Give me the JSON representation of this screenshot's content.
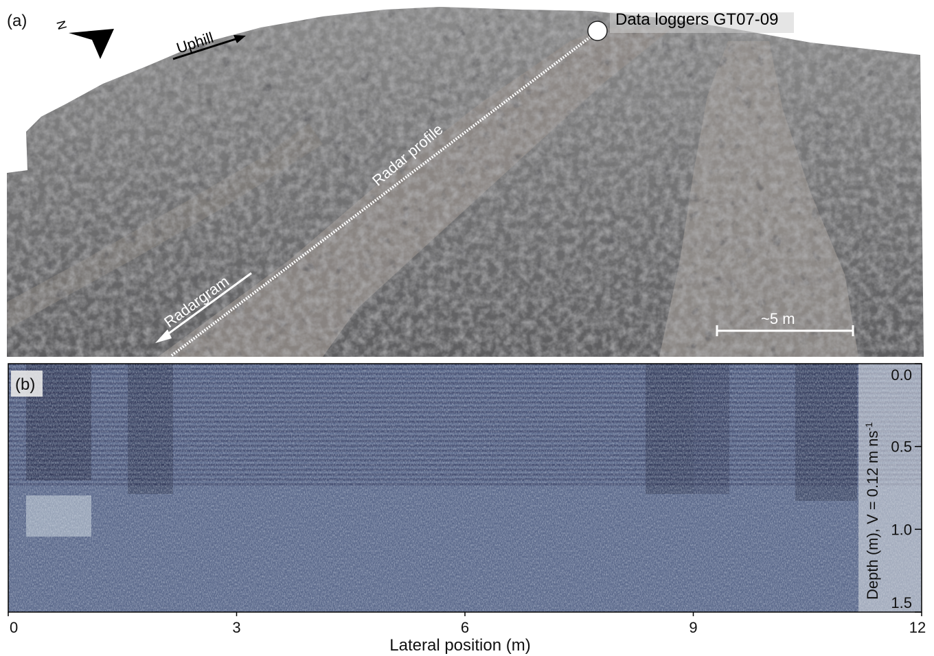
{
  "panel_a": {
    "label": "(a)",
    "north_letter": "N",
    "uphill_label": "Uphill",
    "radar_profile_label": "Radar profile",
    "radargram_label": "Radargram",
    "data_loggers_label": "Data loggers GT07-09",
    "scale_label": "~5 m"
  },
  "panel_b": {
    "label": "(b)",
    "x_axis": {
      "label": "Lateral position (m)",
      "ticks": [
        "0",
        "3",
        "6",
        "9",
        "12"
      ],
      "range": [
        0,
        12
      ]
    },
    "y_axis": {
      "label_prefix": "Depth (m), V = 0.12 m ns",
      "label_superscript": "-1",
      "ticks": [
        "0.0",
        "0.5",
        "1.0",
        "1.5"
      ],
      "range": [
        0.0,
        1.5
      ]
    }
  },
  "colors": {
    "radar_dark": "#2e3360",
    "radar_light": "#dfe9ec",
    "rock_gray": "#6e6e70"
  }
}
